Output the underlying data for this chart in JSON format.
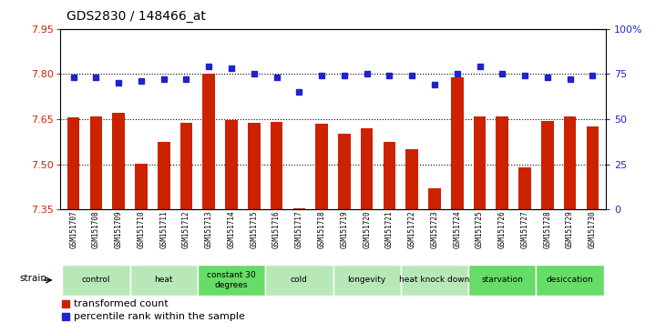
{
  "title": "GDS2830 / 148466_at",
  "samples": [
    "GSM151707",
    "GSM151708",
    "GSM151709",
    "GSM151710",
    "GSM151711",
    "GSM151712",
    "GSM151713",
    "GSM151714",
    "GSM151715",
    "GSM151716",
    "GSM151717",
    "GSM151718",
    "GSM151719",
    "GSM151720",
    "GSM151721",
    "GSM151722",
    "GSM151723",
    "GSM151724",
    "GSM151725",
    "GSM151726",
    "GSM151727",
    "GSM151728",
    "GSM151729",
    "GSM151730"
  ],
  "red_values": [
    7.656,
    7.66,
    7.672,
    7.503,
    7.573,
    7.638,
    7.8,
    7.648,
    7.638,
    7.64,
    7.352,
    7.636,
    7.6,
    7.62,
    7.575,
    7.55,
    7.42,
    7.79,
    7.658,
    7.66,
    7.49,
    7.643,
    7.66,
    7.625
  ],
  "blue_values": [
    73,
    73,
    70,
    71,
    72,
    72,
    79,
    78,
    75,
    73,
    65,
    74,
    74,
    75,
    74,
    74,
    69,
    75,
    79,
    75,
    74,
    73,
    72,
    74
  ],
  "groups": [
    {
      "label": "control",
      "start": 0,
      "end": 2,
      "color": "#b8e8b8"
    },
    {
      "label": "heat",
      "start": 3,
      "end": 5,
      "color": "#b8e8b8"
    },
    {
      "label": "constant 30\ndegrees",
      "start": 6,
      "end": 8,
      "color": "#66dd66"
    },
    {
      "label": "cold",
      "start": 9,
      "end": 11,
      "color": "#b8e8b8"
    },
    {
      "label": "longevity",
      "start": 12,
      "end": 14,
      "color": "#b8e8b8"
    },
    {
      "label": "heat knock down",
      "start": 15,
      "end": 17,
      "color": "#b8e8b8"
    },
    {
      "label": "starvation",
      "start": 18,
      "end": 20,
      "color": "#66dd66"
    },
    {
      "label": "desiccation",
      "start": 21,
      "end": 23,
      "color": "#66dd66"
    }
  ],
  "ylim_left": [
    7.35,
    7.95
  ],
  "ylim_right": [
    0,
    100
  ],
  "yticks_left": [
    7.35,
    7.5,
    7.65,
    7.8,
    7.95
  ],
  "yticks_right": [
    0,
    25,
    50,
    75,
    100
  ],
  "bar_color": "#cc2200",
  "dot_color": "#2222cc",
  "grid_color": "black",
  "tick_bg_color": "#cccccc",
  "strain_label": "strain"
}
